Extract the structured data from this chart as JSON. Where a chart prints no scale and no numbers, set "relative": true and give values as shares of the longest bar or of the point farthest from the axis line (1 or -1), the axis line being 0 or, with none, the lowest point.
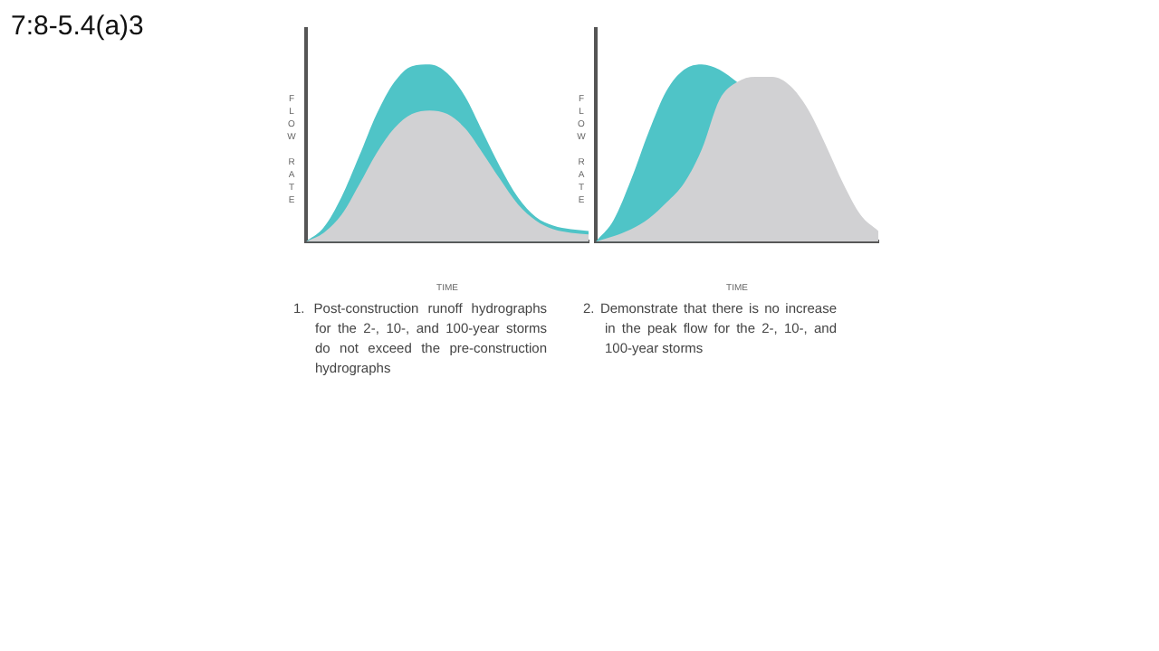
{
  "chart_data": [
    {
      "type": "other",
      "title": "7:8-5.4(a)3"
    },
    {
      "type": "area",
      "relative": true,
      "xlabel": "TIME",
      "ylabel": "FLOW RATE",
      "marker": "none",
      "grid": false,
      "legend": false,
      "categories": [
        null,
        null,
        null,
        null,
        null,
        null,
        null,
        null,
        null,
        null,
        null,
        null,
        null,
        null,
        null,
        null,
        null
      ],
      "series": [
        {
          "color": "#4fc4c7",
          "values": [
            0,
            0.08,
            0.25,
            0.48,
            0.72,
            0.9,
            0.99,
            1.0,
            0.95,
            0.82,
            0.62,
            0.42,
            0.25,
            0.14,
            0.09,
            0.07,
            0.06
          ]
        },
        {
          "color": "#d1d1d3",
          "values": [
            0,
            0.05,
            0.15,
            0.32,
            0.5,
            0.64,
            0.72,
            0.74,
            0.72,
            0.64,
            0.5,
            0.35,
            0.21,
            0.12,
            0.07,
            0.05,
            0.04
          ]
        }
      ],
      "annotations": [
        "1. Post-construction runoff hydrographs for the 2-, 10-, and 100-year storms do not exceed the pre-construction hydrographs"
      ]
    },
    {
      "type": "area",
      "relative": true,
      "xlabel": "TIME",
      "ylabel": "FLOW RATE",
      "marker": "none",
      "grid": false,
      "legend": false,
      "categories": [
        null,
        null,
        null,
        null,
        null,
        null,
        null,
        null,
        null,
        null,
        null,
        null,
        null,
        null,
        null,
        null,
        null
      ],
      "series": [
        {
          "color": "#4fc4c7",
          "values": [
            0,
            0.12,
            0.35,
            0.62,
            0.85,
            0.97,
            1.0,
            0.97,
            0.9,
            null,
            null,
            null,
            null,
            null,
            null,
            null,
            null
          ]
        },
        {
          "color": "#d1d1d3",
          "values": [
            0,
            0.03,
            0.07,
            0.13,
            0.22,
            0.33,
            0.52,
            0.8,
            0.9,
            0.93,
            0.93,
            0.88,
            0.75,
            0.55,
            0.33,
            0.15,
            0.06
          ]
        }
      ],
      "annotations": [
        "2. Demonstrate that there is no increase in the peak flow for the 2-, 10-, and 100-year storms"
      ]
    }
  ]
}
